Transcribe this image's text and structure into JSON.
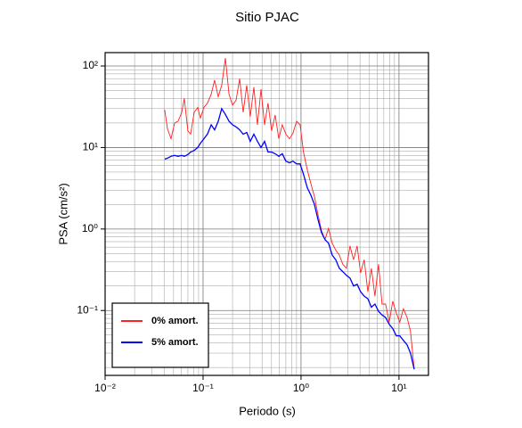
{
  "chart_data": {
    "type": "line",
    "title": "Sitio PJAC",
    "xlabel": "Periodo (s)",
    "ylabel": "PSA (cm/s²)",
    "log_x": true,
    "log_y": true,
    "grid": true,
    "legend": "lower left",
    "xlim": [
      0.01,
      20
    ],
    "ylim": [
      0.016,
      146
    ],
    "xticks": [
      {
        "value": 0.01,
        "label": "10⁻²"
      },
      {
        "value": 0.1,
        "label": "10⁻¹"
      },
      {
        "value": 1,
        "label": "10⁰"
      },
      {
        "value": 10,
        "label": "10¹"
      }
    ],
    "yticks": [
      {
        "value": 0.1,
        "label": "10⁻¹"
      },
      {
        "value": 1,
        "label": "10⁰"
      },
      {
        "value": 10,
        "label": "10¹"
      },
      {
        "value": 100,
        "label": "10²"
      }
    ],
    "x": [
      0.0406,
      0.0433,
      0.0471,
      0.0512,
      0.0556,
      0.0605,
      0.0644,
      0.07,
      0.0746,
      0.0811,
      0.0882,
      0.0939,
      0.102,
      0.111,
      0.121,
      0.131,
      0.143,
      0.155,
      0.169,
      0.184,
      0.2,
      0.217,
      0.236,
      0.257,
      0.279,
      0.303,
      0.33,
      0.359,
      0.39,
      0.424,
      0.461,
      0.501,
      0.545,
      0.593,
      0.644,
      0.7,
      0.762,
      0.828,
      0.901,
      0.979,
      1.06,
      1.16,
      1.26,
      1.37,
      1.49,
      1.62,
      1.76,
      1.91,
      2.08,
      2.26,
      2.46,
      2.67,
      2.91,
      3.16,
      3.44,
      3.74,
      4.06,
      4.42,
      4.81,
      5.23,
      5.68,
      6.18,
      6.72,
      7.31,
      7.94,
      8.63,
      9.39,
      10.2,
      11.1,
      12.1,
      13.1,
      14.3
    ],
    "series": [
      {
        "name": "0% amort.",
        "color": "#ff2020",
        "values": [
          29,
          17,
          12.8,
          20,
          21,
          27,
          40,
          16,
          14.6,
          27,
          31,
          23,
          31,
          35,
          45,
          67,
          42,
          58,
          125,
          45,
          33,
          38,
          70,
          27,
          58,
          24,
          55,
          19,
          52,
          19,
          35,
          16,
          25,
          12.8,
          19,
          14.6,
          12.8,
          15,
          21,
          19,
          8.8,
          5.3,
          3.6,
          2.5,
          1.5,
          0.95,
          0.74,
          1.02,
          0.67,
          0.55,
          0.48,
          0.37,
          0.33,
          0.62,
          0.42,
          0.62,
          0.29,
          0.42,
          0.17,
          0.33,
          0.15,
          0.37,
          0.12,
          0.12,
          0.072,
          0.13,
          0.093,
          0.072,
          0.105,
          0.082,
          0.056,
          0.019
        ]
      },
      {
        "name": "5% amort.",
        "color": "#0000ff",
        "values": [
          7.2,
          7.4,
          7.8,
          8.0,
          7.8,
          8.0,
          7.8,
          8.2,
          8.8,
          9.2,
          10,
          11.3,
          12.8,
          14.6,
          19,
          16.5,
          21,
          30,
          25.5,
          21,
          19,
          17.9,
          16.5,
          14.6,
          15.3,
          11.9,
          14.6,
          11.9,
          10,
          11.9,
          8.8,
          8.8,
          8.4,
          7.8,
          8.4,
          6.8,
          6.5,
          6.8,
          6.3,
          6.3,
          4.7,
          3.2,
          2.6,
          2.0,
          1.3,
          0.9,
          0.74,
          0.67,
          0.48,
          0.42,
          0.33,
          0.3,
          0.27,
          0.25,
          0.2,
          0.21,
          0.17,
          0.15,
          0.14,
          0.11,
          0.12,
          0.098,
          0.088,
          0.082,
          0.068,
          0.06,
          0.049,
          0.049,
          0.043,
          0.038,
          0.03,
          0.019
        ]
      }
    ]
  }
}
